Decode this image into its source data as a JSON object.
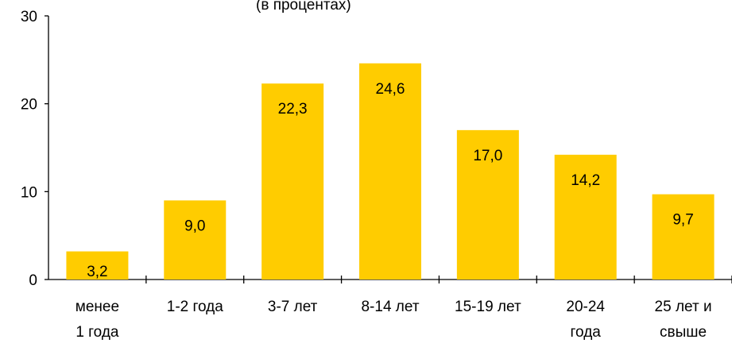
{
  "title_fragment": "(в процентах)",
  "chart_data": {
    "type": "bar",
    "title": "(в процентах)",
    "categories": [
      [
        "менее",
        "1 года"
      ],
      [
        "1-2 года"
      ],
      [
        "3-7 лет"
      ],
      [
        "8-14 лет"
      ],
      [
        "15-19 лет"
      ],
      [
        "20-24",
        "года"
      ],
      [
        "25 лет и",
        "свыше"
      ]
    ],
    "values": [
      3.2,
      9.0,
      22.3,
      24.6,
      17.0,
      14.2,
      9.7
    ],
    "value_labels": [
      "3,2",
      "9,0",
      "22,3",
      "24,6",
      "17,0",
      "14,2",
      "9,7"
    ],
    "ylim": [
      0,
      30
    ],
    "yticks": [
      0,
      10,
      20,
      30
    ],
    "grid": false,
    "legend": "none",
    "bar_color": "#FFCC00"
  }
}
